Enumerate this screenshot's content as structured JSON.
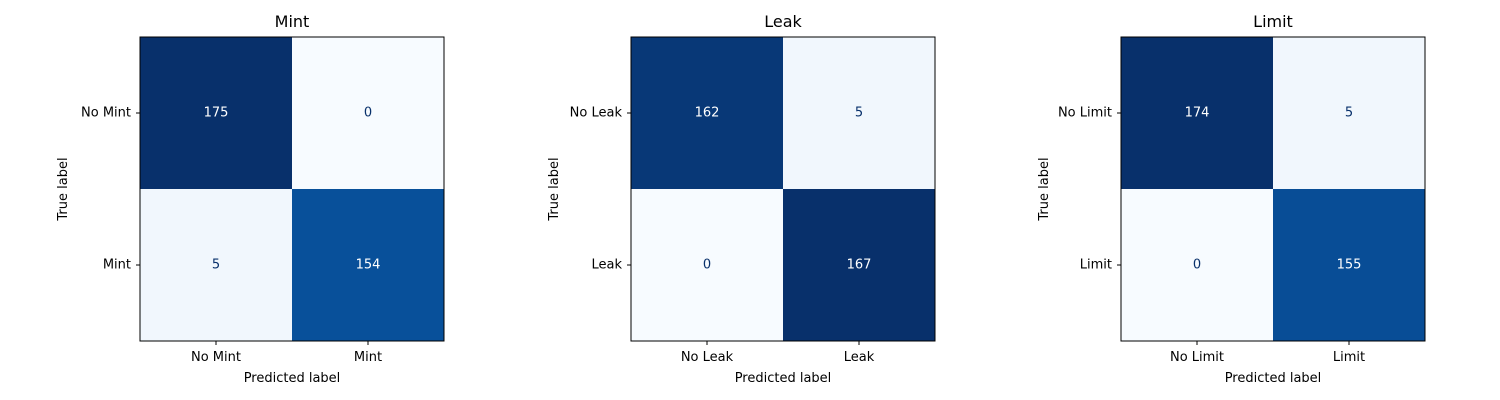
{
  "chart_data": [
    {
      "type": "heatmap",
      "title": "Mint",
      "xlabel": "Predicted label",
      "ylabel": "True label",
      "x_categories": [
        "No Mint",
        "Mint"
      ],
      "y_categories": [
        "No Mint",
        "Mint"
      ],
      "values": [
        [
          175,
          0
        ],
        [
          5,
          154
        ]
      ],
      "colormap": "Blues"
    },
    {
      "type": "heatmap",
      "title": "Leak",
      "xlabel": "Predicted label",
      "ylabel": "True label",
      "x_categories": [
        "No Leak",
        "Leak"
      ],
      "y_categories": [
        "No Leak",
        "Leak"
      ],
      "values": [
        [
          162,
          5
        ],
        [
          0,
          167
        ]
      ],
      "colormap": "Blues"
    },
    {
      "type": "heatmap",
      "title": "Limit",
      "xlabel": "Predicted label",
      "ylabel": "True label",
      "x_categories": [
        "No Limit",
        "Limit"
      ],
      "y_categories": [
        "No Limit",
        "Limit"
      ],
      "values": [
        [
          174,
          5
        ],
        [
          0,
          155
        ]
      ],
      "colormap": "Blues"
    }
  ]
}
